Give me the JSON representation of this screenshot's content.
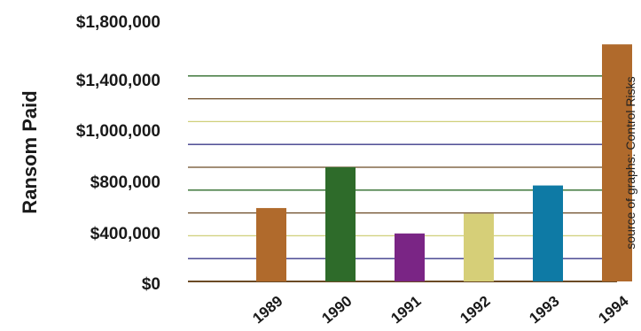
{
  "chart_data": {
    "type": "bar",
    "ylabel": "Ransom Paid",
    "categories": [
      "1989",
      "1990",
      "1991",
      "1992",
      "1993",
      "1994"
    ],
    "values": [
      520000,
      810000,
      340000,
      480000,
      680000,
      1680000
    ],
    "ylim": [
      0,
      1800000
    ],
    "ytick_labels": [
      "$0",
      "$400,000",
      "$800,000",
      "$1,000,000",
      "$1,400,000",
      "$1,800,000"
    ],
    "grid": true,
    "source_note": "source of graphs: Control Risks"
  },
  "colors": {
    "bars": [
      "#b06a2c",
      "#2e6b2a",
      "#7a2585",
      "#d6cf78",
      "#0e7aa5",
      "#b06a2c"
    ],
    "grid_lines": [
      "#6b4a25",
      "#3b3a8a",
      "#cfcf7a",
      "#6b4a25",
      "#2e6b2a",
      "#6b4a25",
      "#3b3a8a",
      "#cfcf7a",
      "#6b4a25",
      "#2e6b2a"
    ],
    "text": "#1a1a1a"
  }
}
